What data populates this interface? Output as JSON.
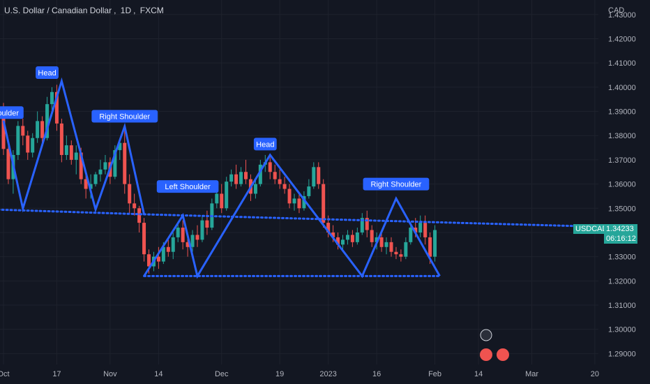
{
  "header": {
    "symbol_name": "U.S. Dollar / Canadian Dollar",
    "interval": "1D",
    "exchange": "FXCM"
  },
  "currency_label": "CAD",
  "price_badge": {
    "ticker": "USDCAD",
    "price": "1.34233",
    "countdown": "06:16:12",
    "color": "#26a69a"
  },
  "colors": {
    "up": "#26a69a",
    "down": "#ef5350",
    "pattern": "#2962ff",
    "background": "#131722"
  },
  "pattern_labels": [
    {
      "text": "Shoulder",
      "date_index": 0,
      "price": 1.3895
    },
    {
      "text": "Head",
      "date_index": 9,
      "price": 1.406
    },
    {
      "text": "Right Shoulder",
      "date_index": 25,
      "price": 1.388
    },
    {
      "text": "Left Shoulder",
      "date_index": 38,
      "price": 1.359
    },
    {
      "text": "Head",
      "date_index": 54,
      "price": 1.3765
    },
    {
      "text": "Right Shoulder",
      "date_index": 81,
      "price": 1.36
    }
  ],
  "chart_data": {
    "type": "candlestick",
    "title": "U.S. Dollar / Canadian Dollar, 1D, FXCM",
    "y_axis": {
      "ticks": [
        "1.43000",
        "1.42000",
        "1.41000",
        "1.40000",
        "1.39000",
        "1.38000",
        "1.37000",
        "1.36000",
        "1.35000",
        "1.34000",
        "1.33000",
        "1.32000",
        "1.31000",
        "1.30000",
        "1.29000"
      ],
      "range": [
        1.2855,
        1.436
      ]
    },
    "x_axis": {
      "ticks": [
        {
          "label": "Oct",
          "date_index": 0
        },
        {
          "label": "17",
          "date_index": 11
        },
        {
          "label": "Nov",
          "date_index": 22
        },
        {
          "label": "14",
          "date_index": 32
        },
        {
          "label": "Dec",
          "date_index": 45
        },
        {
          "label": "19",
          "date_index": 57
        },
        {
          "label": "2023",
          "date_index": 67
        },
        {
          "label": "16",
          "date_index": 77
        },
        {
          "label": "Feb",
          "date_index": 89
        },
        {
          "label": "14",
          "date_index": 98
        },
        {
          "label": "Mar",
          "date_index": 109
        },
        {
          "label": "20",
          "date_index": 122
        }
      ]
    },
    "candles": [
      [
        1.391,
        1.3935,
        1.372,
        1.3745
      ],
      [
        1.3745,
        1.378,
        1.36,
        1.362
      ],
      [
        1.362,
        1.374,
        1.356,
        1.372
      ],
      [
        1.372,
        1.386,
        1.37,
        1.384
      ],
      [
        1.384,
        1.387,
        1.376,
        1.38
      ],
      [
        1.38,
        1.382,
        1.37,
        1.373
      ],
      [
        1.373,
        1.381,
        1.371,
        1.379
      ],
      [
        1.379,
        1.39,
        1.377,
        1.386
      ],
      [
        1.386,
        1.388,
        1.376,
        1.379
      ],
      [
        1.379,
        1.396,
        1.378,
        1.393
      ],
      [
        1.393,
        1.4,
        1.388,
        1.398
      ],
      [
        1.398,
        1.401,
        1.382,
        1.385
      ],
      [
        1.385,
        1.387,
        1.369,
        1.372
      ],
      [
        1.372,
        1.38,
        1.37,
        1.376
      ],
      [
        1.376,
        1.378,
        1.368,
        1.37
      ],
      [
        1.37,
        1.376,
        1.364,
        1.373
      ],
      [
        1.373,
        1.375,
        1.36,
        1.362
      ],
      [
        1.362,
        1.364,
        1.354,
        1.358
      ],
      [
        1.358,
        1.364,
        1.354,
        1.36
      ],
      [
        1.36,
        1.365,
        1.359,
        1.364
      ],
      [
        1.364,
        1.37,
        1.361,
        1.366
      ],
      [
        1.366,
        1.372,
        1.364,
        1.369
      ],
      [
        1.369,
        1.371,
        1.36,
        1.363
      ],
      [
        1.363,
        1.376,
        1.362,
        1.374
      ],
      [
        1.374,
        1.379,
        1.37,
        1.377
      ],
      [
        1.377,
        1.383,
        1.356,
        1.36
      ],
      [
        1.36,
        1.364,
        1.348,
        1.352
      ],
      [
        1.352,
        1.356,
        1.347,
        1.35
      ],
      [
        1.35,
        1.351,
        1.34,
        1.344
      ],
      [
        1.344,
        1.346,
        1.328,
        1.331
      ],
      [
        1.331,
        1.333,
        1.323,
        1.326
      ],
      [
        1.326,
        1.332,
        1.324,
        1.33
      ],
      [
        1.33,
        1.334,
        1.325,
        1.328
      ],
      [
        1.328,
        1.336,
        1.327,
        1.334
      ],
      [
        1.334,
        1.338,
        1.33,
        1.332
      ],
      [
        1.332,
        1.34,
        1.329,
        1.338
      ],
      [
        1.338,
        1.344,
        1.336,
        1.342
      ],
      [
        1.342,
        1.345,
        1.333,
        1.336
      ],
      [
        1.336,
        1.339,
        1.33,
        1.334
      ],
      [
        1.334,
        1.341,
        1.332,
        1.339
      ],
      [
        1.339,
        1.343,
        1.334,
        1.337
      ],
      [
        1.337,
        1.347,
        1.336,
        1.345
      ],
      [
        1.345,
        1.349,
        1.339,
        1.342
      ],
      [
        1.342,
        1.354,
        1.341,
        1.352
      ],
      [
        1.352,
        1.358,
        1.35,
        1.356
      ],
      [
        1.356,
        1.36,
        1.348,
        1.35
      ],
      [
        1.35,
        1.363,
        1.349,
        1.361
      ],
      [
        1.361,
        1.366,
        1.359,
        1.364
      ],
      [
        1.364,
        1.368,
        1.358,
        1.36
      ],
      [
        1.36,
        1.367,
        1.359,
        1.365
      ],
      [
        1.365,
        1.37,
        1.36,
        1.362
      ],
      [
        1.362,
        1.364,
        1.353,
        1.356
      ],
      [
        1.356,
        1.362,
        1.354,
        1.36
      ],
      [
        1.36,
        1.37,
        1.359,
        1.368
      ],
      [
        1.368,
        1.372,
        1.365,
        1.369
      ],
      [
        1.369,
        1.371,
        1.362,
        1.365
      ],
      [
        1.365,
        1.368,
        1.36,
        1.362
      ],
      [
        1.362,
        1.366,
        1.358,
        1.36
      ],
      [
        1.36,
        1.363,
        1.356,
        1.358
      ],
      [
        1.358,
        1.36,
        1.35,
        1.352
      ],
      [
        1.352,
        1.356,
        1.349,
        1.354
      ],
      [
        1.354,
        1.356,
        1.348,
        1.35
      ],
      [
        1.35,
        1.357,
        1.349,
        1.355
      ],
      [
        1.355,
        1.362,
        1.354,
        1.359
      ],
      [
        1.359,
        1.369,
        1.358,
        1.367
      ],
      [
        1.367,
        1.369,
        1.358,
        1.36
      ],
      [
        1.36,
        1.362,
        1.342,
        1.344
      ],
      [
        1.344,
        1.347,
        1.338,
        1.34
      ],
      [
        1.34,
        1.343,
        1.336,
        1.338
      ],
      [
        1.338,
        1.34,
        1.333,
        1.335
      ],
      [
        1.335,
        1.339,
        1.333,
        1.337
      ],
      [
        1.337,
        1.341,
        1.335,
        1.339
      ],
      [
        1.339,
        1.341,
        1.334,
        1.336
      ],
      [
        1.336,
        1.342,
        1.335,
        1.34
      ],
      [
        1.34,
        1.348,
        1.339,
        1.346
      ],
      [
        1.346,
        1.349,
        1.338,
        1.341
      ],
      [
        1.341,
        1.343,
        1.334,
        1.336
      ],
      [
        1.336,
        1.34,
        1.333,
        1.338
      ],
      [
        1.338,
        1.34,
        1.332,
        1.334
      ],
      [
        1.334,
        1.338,
        1.331,
        1.336
      ],
      [
        1.336,
        1.338,
        1.33,
        1.332
      ],
      [
        1.332,
        1.334,
        1.329,
        1.331
      ],
      [
        1.331,
        1.333,
        1.328,
        1.33
      ],
      [
        1.33,
        1.338,
        1.329,
        1.336
      ],
      [
        1.336,
        1.344,
        1.335,
        1.342
      ],
      [
        1.342,
        1.346,
        1.338,
        1.34
      ],
      [
        1.34,
        1.347,
        1.338,
        1.344
      ],
      [
        1.344,
        1.347,
        1.335,
        1.338
      ],
      [
        1.338,
        1.34,
        1.327,
        1.33
      ],
      [
        1.33,
        1.343,
        1.328,
        1.341
      ]
    ]
  }
}
